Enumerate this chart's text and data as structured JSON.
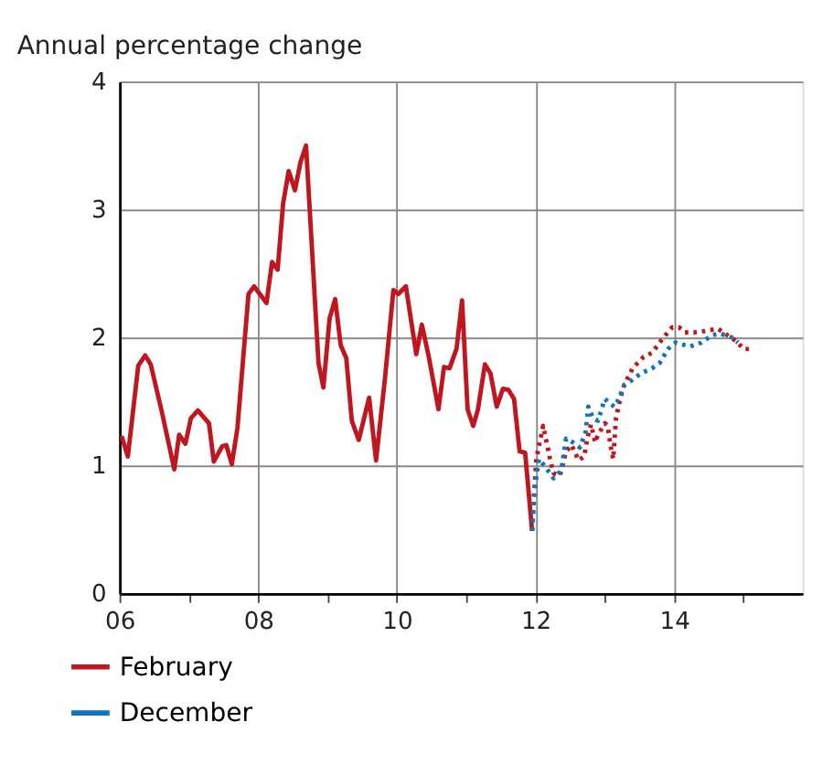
{
  "chart_data": {
    "type": "line",
    "title": "Annual percentage change",
    "xlim": [
      2006,
      2015.85
    ],
    "ylim": [
      0,
      4
    ],
    "yticks": [
      0,
      1,
      2,
      3,
      4
    ],
    "xticks": [
      {
        "value": 2006,
        "label": "06"
      },
      {
        "value": 2007,
        "label": null
      },
      {
        "value": 2008,
        "label": "08"
      },
      {
        "value": 2009,
        "label": null
      },
      {
        "value": 2010,
        "label": "10"
      },
      {
        "value": 2011,
        "label": null
      },
      {
        "value": 2012,
        "label": "12"
      },
      {
        "value": 2013,
        "label": null
      },
      {
        "value": 2014,
        "label": "14"
      },
      {
        "value": 2015,
        "label": null
      }
    ],
    "grid": true,
    "legend": "bottom",
    "marker": "none",
    "series": [
      {
        "name": "February",
        "color": "#c0161f",
        "line_style": "solid",
        "x": [
          2006.03,
          2006.12,
          2006.27,
          2006.37,
          2006.45,
          2006.61,
          2006.79,
          2006.86,
          2006.95,
          2007.03,
          2007.13,
          2007.29,
          2007.36,
          2007.48,
          2007.54,
          2007.62,
          2007.7,
          2007.86,
          2007.94,
          2008.12,
          2008.2,
          2008.28,
          2008.36,
          2008.44,
          2008.53,
          2008.61,
          2008.69,
          2008.87,
          2008.94,
          2009.03,
          2009.11,
          2009.19,
          2009.27,
          2009.35,
          2009.45,
          2009.6,
          2009.7,
          2009.83,
          2009.95,
          2010.02,
          2010.13,
          2010.28,
          2010.36,
          2010.46,
          2010.6,
          2010.68,
          2010.76,
          2010.86,
          2010.94,
          2011.02,
          2011.1,
          2011.17,
          2011.27,
          2011.35,
          2011.44,
          2011.53,
          2011.61,
          2011.69,
          2011.77,
          2011.85,
          2011.95
        ],
        "values": [
          1.23,
          1.07,
          1.78,
          1.86,
          1.79,
          1.42,
          0.97,
          1.24,
          1.17,
          1.37,
          1.43,
          1.33,
          1.03,
          1.15,
          1.16,
          1.01,
          1.29,
          2.34,
          2.4,
          2.27,
          2.59,
          2.53,
          3.05,
          3.3,
          3.15,
          3.37,
          3.5,
          1.8,
          1.61,
          2.15,
          2.3,
          1.94,
          1.84,
          1.35,
          1.2,
          1.53,
          1.04,
          1.69,
          2.37,
          2.34,
          2.4,
          1.87,
          2.1,
          1.85,
          1.44,
          1.77,
          1.76,
          1.91,
          2.29,
          1.44,
          1.31,
          1.44,
          1.79,
          1.72,
          1.46,
          1.6,
          1.59,
          1.52,
          1.11,
          1.1,
          0.49
        ]
      },
      {
        "color": "#c0161f",
        "line_style": "dotted",
        "x": [
          2011.95,
          2012.01,
          2012.11,
          2012.21,
          2012.26,
          2012.35,
          2012.44,
          2012.52,
          2012.62,
          2012.7,
          2012.75,
          2012.8,
          2012.86,
          2012.9,
          2013.0,
          2013.04,
          2013.08,
          2013.12,
          2013.16,
          2013.22,
          2013.28,
          2013.4,
          2013.56,
          2013.68,
          2013.83,
          2013.97,
          2014.07,
          2014.15,
          2014.29,
          2014.43,
          2014.63,
          2014.76,
          2014.9,
          2015.0,
          2015.14
        ],
        "values": [
          0.49,
          1.05,
          1.31,
          1.05,
          0.94,
          0.92,
          1.11,
          1.16,
          1.04,
          1.07,
          1.22,
          1.32,
          1.18,
          1.24,
          1.33,
          1.31,
          1.16,
          1.05,
          1.37,
          1.52,
          1.63,
          1.76,
          1.85,
          1.88,
          1.99,
          2.08,
          2.08,
          2.04,
          2.04,
          2.05,
          2.07,
          2.02,
          1.97,
          1.91,
          1.91
        ]
      },
      {
        "name": "December",
        "color": "#0f75bd",
        "line_style": "dotted",
        "x": [
          2011.95,
          2011.98,
          2012.05,
          2012.14,
          2012.26,
          2012.37,
          2012.44,
          2012.54,
          2012.64,
          2012.72,
          2012.76,
          2012.83,
          2012.9,
          2013.0,
          2013.08,
          2013.14,
          2013.2,
          2013.28,
          2013.4,
          2013.52,
          2013.68,
          2013.79,
          2013.91,
          2014.02,
          2014.23,
          2014.39,
          2014.55,
          2014.67,
          2014.83,
          2014.92
        ],
        "values": [
          0.49,
          0.79,
          1.05,
          0.99,
          0.9,
          0.96,
          1.21,
          1.18,
          1.14,
          1.26,
          1.46,
          1.37,
          1.35,
          1.52,
          1.48,
          1.46,
          1.52,
          1.63,
          1.67,
          1.72,
          1.76,
          1.8,
          1.91,
          1.96,
          1.93,
          1.96,
          2.02,
          2.03,
          2.0,
          1.96
        ]
      }
    ]
  }
}
